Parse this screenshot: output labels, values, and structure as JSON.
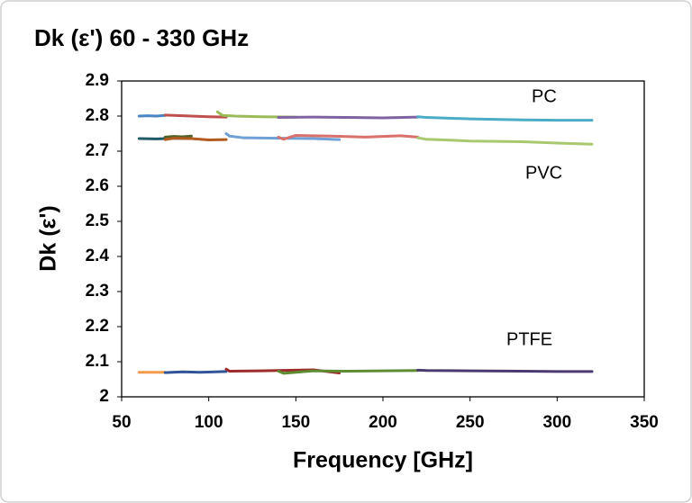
{
  "chart_data": {
    "type": "line",
    "title": "Dk (ε') 60 - 330 GHz",
    "x_label": "Frequency [GHz]",
    "y_label": "Dk (ε')",
    "annotations": [
      "PC",
      "PVC",
      "PTFE"
    ],
    "xlim": [
      50,
      350
    ],
    "xticks": [
      50,
      100,
      150,
      200,
      250,
      300,
      350
    ],
    "ylim": [
      2,
      2.9
    ],
    "yticks": [
      2,
      2.1,
      2.2,
      2.3,
      2.4,
      2.5,
      2.6,
      2.7,
      2.8,
      2.9
    ],
    "grid": false,
    "series": [
      {
        "color": "#4a86c5",
        "x": [
          60,
          65,
          70,
          75
        ],
        "values": [
          2.8,
          2.801,
          2.8,
          2.802
        ]
      },
      {
        "color": "#c0504d",
        "x": [
          75,
          80,
          90,
          100,
          110
        ],
        "values": [
          2.803,
          2.802,
          2.8,
          2.798,
          2.797
        ]
      },
      {
        "color": "#9bbb59",
        "x": [
          105,
          108,
          115,
          130,
          150
        ],
        "values": [
          2.812,
          2.802,
          2.8,
          2.798,
          2.797
        ]
      },
      {
        "color": "#8064a2",
        "x": [
          140,
          160,
          180,
          200,
          220
        ],
        "values": [
          2.796,
          2.797,
          2.796,
          2.795,
          2.797
        ]
      },
      {
        "color": "#4bacc6",
        "x": [
          220,
          225,
          250,
          280,
          300,
          320
        ],
        "values": [
          2.798,
          2.796,
          2.792,
          2.789,
          2.788,
          2.788
        ]
      },
      {
        "color": "#215968",
        "x": [
          60,
          70,
          80,
          90
        ],
        "values": [
          2.736,
          2.735,
          2.737,
          2.736
        ]
      },
      {
        "color": "#4f6228",
        "x": [
          75,
          80,
          85,
          90
        ],
        "values": [
          2.74,
          2.742,
          2.741,
          2.743
        ]
      },
      {
        "color": "#b35a1f",
        "x": [
          75,
          80,
          90,
          100,
          110
        ],
        "values": [
          2.733,
          2.737,
          2.736,
          2.732,
          2.733
        ]
      },
      {
        "color": "#6fa0d8",
        "x": [
          110,
          112,
          120,
          140,
          160,
          175
        ],
        "values": [
          2.75,
          2.743,
          2.738,
          2.737,
          2.736,
          2.733
        ]
      },
      {
        "color": "#d9706b",
        "x": [
          140,
          143,
          150,
          170,
          190,
          210,
          220
        ],
        "values": [
          2.74,
          2.734,
          2.745,
          2.743,
          2.74,
          2.744,
          2.74
        ]
      },
      {
        "color": "#a9c971",
        "x": [
          220,
          225,
          250,
          280,
          300,
          320
        ],
        "values": [
          2.738,
          2.734,
          2.729,
          2.727,
          2.723,
          2.72
        ]
      },
      {
        "color": "#f59a4d",
        "x": [
          60,
          65,
          70,
          75
        ],
        "values": [
          2.07,
          2.07,
          2.07,
          2.07
        ]
      },
      {
        "color": "#2f5597",
        "x": [
          75,
          85,
          95,
          110
        ],
        "values": [
          2.069,
          2.071,
          2.07,
          2.072
        ]
      },
      {
        "color": "#9e2a2b",
        "x": [
          110,
          112,
          130,
          150,
          160,
          175
        ],
        "values": [
          2.079,
          2.073,
          2.074,
          2.076,
          2.077,
          2.068
        ]
      },
      {
        "color": "#5e8c31",
        "x": [
          140,
          143,
          160,
          180,
          200,
          220
        ],
        "values": [
          2.073,
          2.067,
          2.074,
          2.073,
          2.074,
          2.075
        ]
      },
      {
        "color": "#4b3a72",
        "x": [
          220,
          225,
          250,
          280,
          300,
          320
        ],
        "values": [
          2.076,
          2.075,
          2.074,
          2.073,
          2.072,
          2.072
        ]
      }
    ]
  }
}
